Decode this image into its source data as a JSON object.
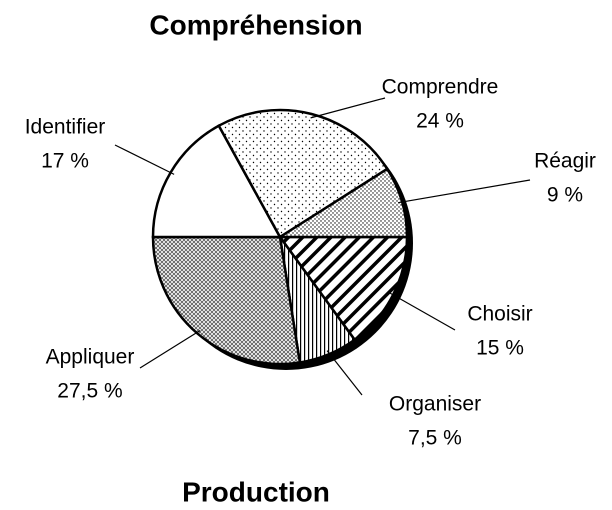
{
  "chart_data": {
    "type": "pie",
    "title": "Compréhension",
    "subtitle": "Production",
    "categories": [
      "Choisir",
      "Organiser",
      "Appliquer",
      "Identifier",
      "Comprendre",
      "Réagir"
    ],
    "values": [
      15,
      7.5,
      27.5,
      17,
      24,
      9
    ],
    "value_labels": [
      "15 %",
      "7,5 %",
      "27,5 %",
      "17 %",
      "24 %",
      "9 %"
    ]
  }
}
